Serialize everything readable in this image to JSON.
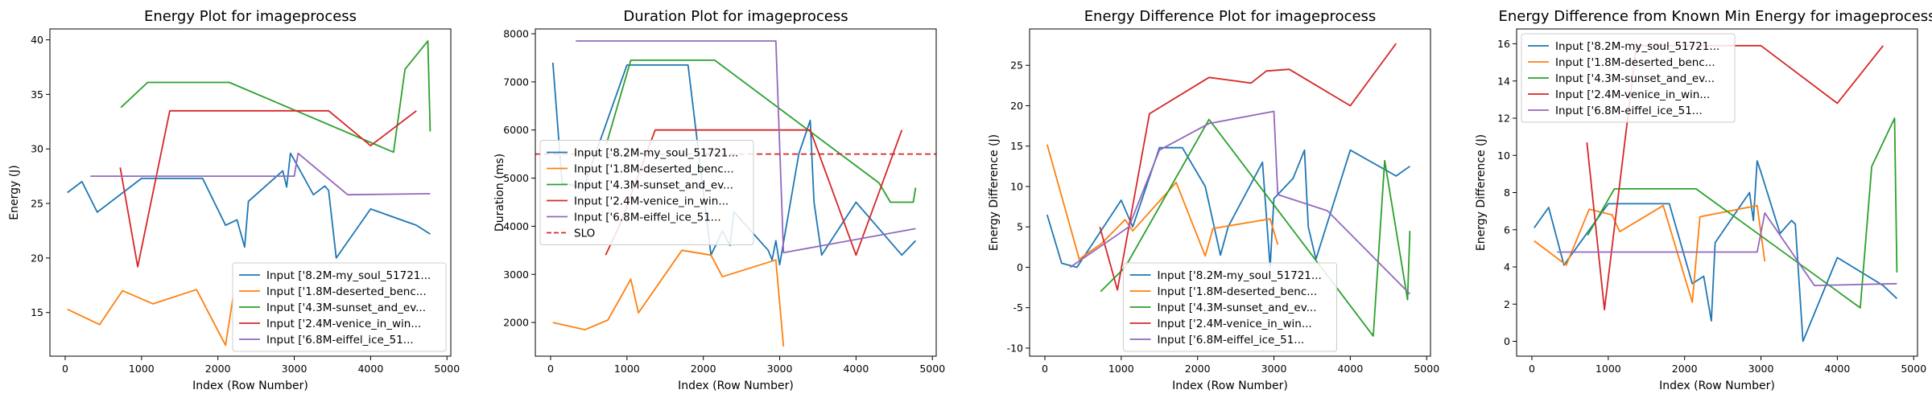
{
  "chart_data": [
    {
      "type": "line",
      "title": "Energy Plot for imageprocess",
      "xlabel": "Index (Row Number)",
      "ylabel": "Energy (J)",
      "xlim": [
        -200,
        5050
      ],
      "ylim": [
        11.0,
        41.0
      ],
      "xticks": [
        0,
        1000,
        2000,
        3000,
        4000,
        5000
      ],
      "yticks": [
        15,
        20,
        25,
        30,
        35,
        40
      ],
      "legend_loc": "lower-right",
      "series": [
        {
          "name": "Input ['8.2M-my_soul_51721...",
          "color": "#1f77b4",
          "x": [
            30,
            220,
            420,
            1000,
            1350,
            1800,
            2100,
            2250,
            2350,
            2400,
            2850,
            2900,
            2950,
            3000,
            3250,
            3400,
            3450,
            3550,
            4000,
            4600,
            4780
          ],
          "y": [
            26.0,
            27.0,
            24.2,
            27.3,
            27.3,
            27.3,
            23.0,
            23.5,
            21.0,
            25.2,
            28.0,
            26.5,
            29.6,
            29.0,
            25.8,
            26.6,
            26.2,
            20.0,
            24.5,
            23.0,
            22.2
          ]
        },
        {
          "name": "Input ['1.8M-deserted_benc...",
          "color": "#ff7f0e",
          "x": [
            30,
            450,
            750,
            1150,
            1720,
            2100,
            2200
          ],
          "y": [
            15.3,
            13.9,
            17.0,
            15.8,
            17.1,
            12.0,
            16.5
          ]
        },
        {
          "name": "Input ['4.3M-sunset_and_ev...",
          "color": "#2ca02c",
          "x": [
            730,
            1080,
            2150,
            4300,
            4450,
            4750,
            4780
          ],
          "y": [
            33.8,
            36.1,
            36.1,
            29.7,
            37.3,
            39.9,
            31.6
          ]
        },
        {
          "name": "Input ['2.4M-venice_in_win...",
          "color": "#d62728",
          "x": [
            720,
            950,
            1370,
            3450,
            4000,
            4600
          ],
          "y": [
            28.3,
            19.2,
            33.5,
            33.5,
            30.3,
            33.5
          ]
        },
        {
          "name": "Input ['6.8M-eiffel_ice_51...",
          "color": "#9467bd",
          "x": [
            330,
            3000,
            3050,
            3700,
            4780
          ],
          "y": [
            27.5,
            27.5,
            29.6,
            25.8,
            25.9
          ]
        }
      ]
    },
    {
      "type": "line",
      "title": "Duration Plot for imageprocess",
      "xlabel": "Index (Row Number)",
      "ylabel": "Duration (ms)",
      "xlim": [
        -200,
        5050
      ],
      "ylim": [
        1300,
        8100
      ],
      "xticks": [
        0,
        1000,
        2000,
        3000,
        4000,
        5000
      ],
      "yticks": [
        2000,
        3000,
        4000,
        5000,
        6000,
        7000,
        8000
      ],
      "legend_loc": "center-left",
      "slo": {
        "name": "SLO",
        "value": 5500,
        "color": "#d62728"
      },
      "series": [
        {
          "name": "Input ['8.2M-my_soul_51721...",
          "color": "#1f77b4",
          "x": [
            30,
            150,
            430,
            1000,
            1350,
            1800,
            2100,
            2250,
            2350,
            2400,
            2850,
            2900,
            2950,
            3000,
            3250,
            3400,
            3450,
            3550,
            4000,
            4600,
            4780
          ],
          "y": [
            7400,
            4900,
            4800,
            7350,
            7350,
            7350,
            3400,
            3900,
            3600,
            4300,
            3500,
            3300,
            3700,
            3200,
            5500,
            6200,
            4500,
            3400,
            4500,
            3400,
            3700
          ]
        },
        {
          "name": "Input ['1.8M-deserted_benc...",
          "color": "#ff7f0e",
          "x": [
            30,
            450,
            750,
            1050,
            1150,
            1720,
            2100,
            2250,
            2950,
            3050
          ],
          "y": [
            2000,
            1850,
            2050,
            2900,
            2200,
            3500,
            3400,
            2950,
            3300,
            1500
          ]
        },
        {
          "name": "Input ['4.3M-sunset_and_ev...",
          "color": "#2ca02c",
          "x": [
            730,
            1050,
            2150,
            4300,
            4450,
            4750,
            4780
          ],
          "y": [
            5700,
            7450,
            7450,
            4900,
            4500,
            4500,
            4800
          ]
        },
        {
          "name": "Input ['2.4M-venice_in_win...",
          "color": "#d62728",
          "x": [
            720,
            900,
            1370,
            3400,
            4000,
            4600
          ],
          "y": [
            3400,
            4000,
            6000,
            6000,
            3400,
            6000
          ]
        },
        {
          "name": "Input ['6.8M-eiffel_ice_51...",
          "color": "#9467bd",
          "x": [
            330,
            2950,
            3050,
            4780
          ],
          "y": [
            7850,
            7850,
            3450,
            3950
          ]
        }
      ]
    },
    {
      "type": "line",
      "title": "Energy Difference Plot for imageprocess",
      "xlabel": "Index (Row Number)",
      "ylabel": "Energy Difference (J)",
      "xlim": [
        -200,
        5050
      ],
      "ylim": [
        -11.0,
        29.5
      ],
      "xticks": [
        0,
        1000,
        2000,
        3000,
        4000,
        5000
      ],
      "yticks": [
        -10,
        -5,
        0,
        5,
        10,
        15,
        20,
        25
      ],
      "legend_loc": "lower-center",
      "series": [
        {
          "name": "Input ['8.2M-my_soul_51721...",
          "color": "#1f77b4",
          "x": [
            30,
            220,
            420,
            1000,
            1150,
            1500,
            1800,
            2100,
            2300,
            2400,
            2850,
            2950,
            3000,
            3250,
            3400,
            3450,
            3550,
            4000,
            4600,
            4780
          ],
          "y": [
            6.5,
            0.5,
            0.0,
            8.3,
            5.0,
            14.8,
            14.8,
            10.0,
            1.5,
            5.0,
            13.0,
            0.0,
            8.5,
            11.0,
            14.5,
            5.0,
            1.0,
            14.5,
            11.3,
            12.5
          ]
        },
        {
          "name": "Input ['1.8M-deserted_benc...",
          "color": "#ff7f0e",
          "x": [
            30,
            450,
            750,
            1050,
            1150,
            1720,
            2100,
            2200,
            2950,
            3050
          ],
          "y": [
            15.2,
            1.0,
            3.0,
            5.9,
            4.5,
            10.5,
            1.4,
            4.8,
            6.0,
            2.8
          ]
        },
        {
          "name": "Input ['4.3M-sunset_and_ev...",
          "color": "#2ca02c",
          "x": [
            730,
            1050,
            2150,
            4300,
            4450,
            4750,
            4780
          ],
          "y": [
            -3.0,
            0.0,
            18.3,
            -8.5,
            13.2,
            -4.0,
            4.5
          ]
        },
        {
          "name": "Input ['2.4M-venice_in_win...",
          "color": "#d62728",
          "x": [
            720,
            950,
            1370,
            2150,
            2700,
            2900,
            3200,
            4000,
            4600
          ],
          "y": [
            5.0,
            -2.8,
            19.0,
            23.5,
            22.8,
            24.3,
            24.5,
            20.0,
            27.7
          ]
        },
        {
          "name": "Input ['6.8M-eiffel_ice_51...",
          "color": "#9467bd",
          "x": [
            330,
            1100,
            1500,
            2150,
            3000,
            3050,
            3700,
            4780
          ],
          "y": [
            0.0,
            5.0,
            14.5,
            17.8,
            19.3,
            9.0,
            7.0,
            -3.3
          ]
        }
      ]
    },
    {
      "type": "line",
      "title": "Energy Difference from Known Min Energy for imageprocess",
      "xlabel": "Index (Row Number)",
      "ylabel": "Energy Difference (J)",
      "xlim": [
        -200,
        5050
      ],
      "ylim": [
        -0.8,
        16.8
      ],
      "xticks": [
        0,
        1000,
        2000,
        3000,
        4000,
        5000
      ],
      "yticks": [
        0,
        2,
        4,
        6,
        8,
        10,
        12,
        14,
        16
      ],
      "legend_loc": "upper-left",
      "series": [
        {
          "name": "Input ['8.2M-my_soul_51721...",
          "color": "#1f77b4",
          "x": [
            30,
            220,
            420,
            1000,
            1350,
            1800,
            2100,
            2250,
            2350,
            2400,
            2850,
            2900,
            2950,
            3000,
            3250,
            3400,
            3450,
            3550,
            4000,
            4600,
            4780
          ],
          "y": [
            6.1,
            7.2,
            4.1,
            7.4,
            7.4,
            7.4,
            3.1,
            3.5,
            1.1,
            5.3,
            8.0,
            6.5,
            9.7,
            9.1,
            5.8,
            6.5,
            6.3,
            0.0,
            4.5,
            3.0,
            2.3
          ]
        },
        {
          "name": "Input ['1.8M-deserted_benc...",
          "color": "#ff7f0e",
          "x": [
            30,
            450,
            750,
            1050,
            1150,
            1720,
            2100,
            2200,
            2950,
            3050
          ],
          "y": [
            5.4,
            4.1,
            7.1,
            6.8,
            5.9,
            7.3,
            2.1,
            6.7,
            7.3,
            4.3
          ]
        },
        {
          "name": "Input ['4.3M-sunset_and_ev...",
          "color": "#2ca02c",
          "x": [
            730,
            1080,
            2150,
            4300,
            4450,
            4750,
            4780
          ],
          "y": [
            5.7,
            8.2,
            8.2,
            1.8,
            9.4,
            12.0,
            3.7
          ]
        },
        {
          "name": "Input ['2.4M-venice_in_win...",
          "color": "#d62728",
          "x": [
            720,
            950,
            1370,
            3000,
            4000,
            4600
          ],
          "y": [
            10.7,
            1.7,
            15.9,
            15.9,
            12.8,
            15.9
          ]
        },
        {
          "name": "Input ['6.8M-eiffel_ice_51...",
          "color": "#9467bd",
          "x": [
            330,
            2950,
            3050,
            3700,
            4780
          ],
          "y": [
            4.8,
            4.8,
            6.9,
            3.0,
            3.1
          ]
        }
      ]
    }
  ]
}
